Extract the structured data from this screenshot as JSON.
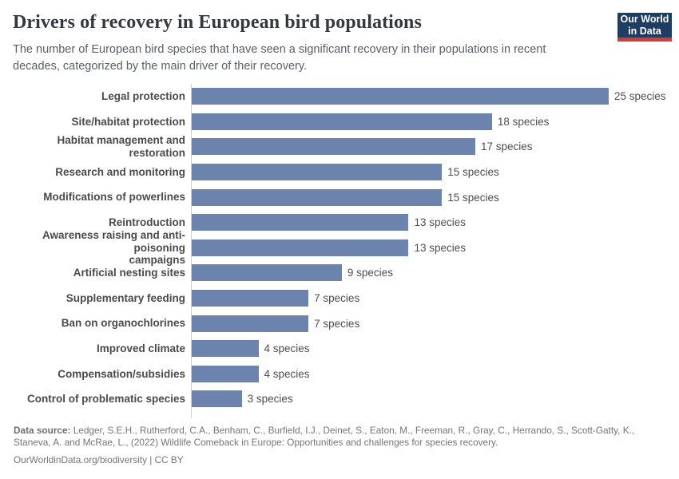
{
  "header": {
    "title": "Drivers of recovery in European bird populations",
    "subtitle": "The number of European bird species that have seen a significant recovery in their populations in recent decades, categorized by the main driver of their recovery.",
    "logo": {
      "line1": "Our World",
      "line2": "in Data",
      "bg_color": "#1d3d63",
      "accent_color": "#d93a34"
    }
  },
  "chart_data": {
    "type": "bar",
    "orientation": "horizontal",
    "title": "Drivers of recovery in European bird populations",
    "categories": [
      "Legal protection",
      "Site/habitat protection",
      "Habitat management and restoration",
      "Research and monitoring",
      "Modifications of powerlines",
      "Reintroduction",
      "Awareness raising and anti-poisoning\ncampaigns",
      "Artificial nesting sites",
      "Supplementary feeding",
      "Ban on organochlorines",
      "Improved climate",
      "Compensation/subsidies",
      "Control of problematic species"
    ],
    "values": [
      25,
      18,
      17,
      15,
      15,
      13,
      13,
      9,
      7,
      7,
      4,
      4,
      3
    ],
    "value_suffix": " species",
    "xlabel": "",
    "ylabel": "",
    "xlim": [
      0,
      25
    ],
    "grid": false,
    "legend": false,
    "bar_color": "#6c84ad",
    "axis_line_color": "#cfcfcf"
  },
  "footer": {
    "data_source_label": "Data source:",
    "data_source_text": " Ledger, S.E.H., Rutherford, C.A., Benham, C., Burfield, I.J., Deinet, S., Eaton, M., Freeman, R., Gray, C., Herrando, S., Scott-Gatty, K., Staneva, A. and McRae, L., (2022) Wildlife Comeback in Europe: Opportunities and challenges for species recovery.",
    "license_line": "OurWorldinData.org/biodiversity | CC BY"
  }
}
